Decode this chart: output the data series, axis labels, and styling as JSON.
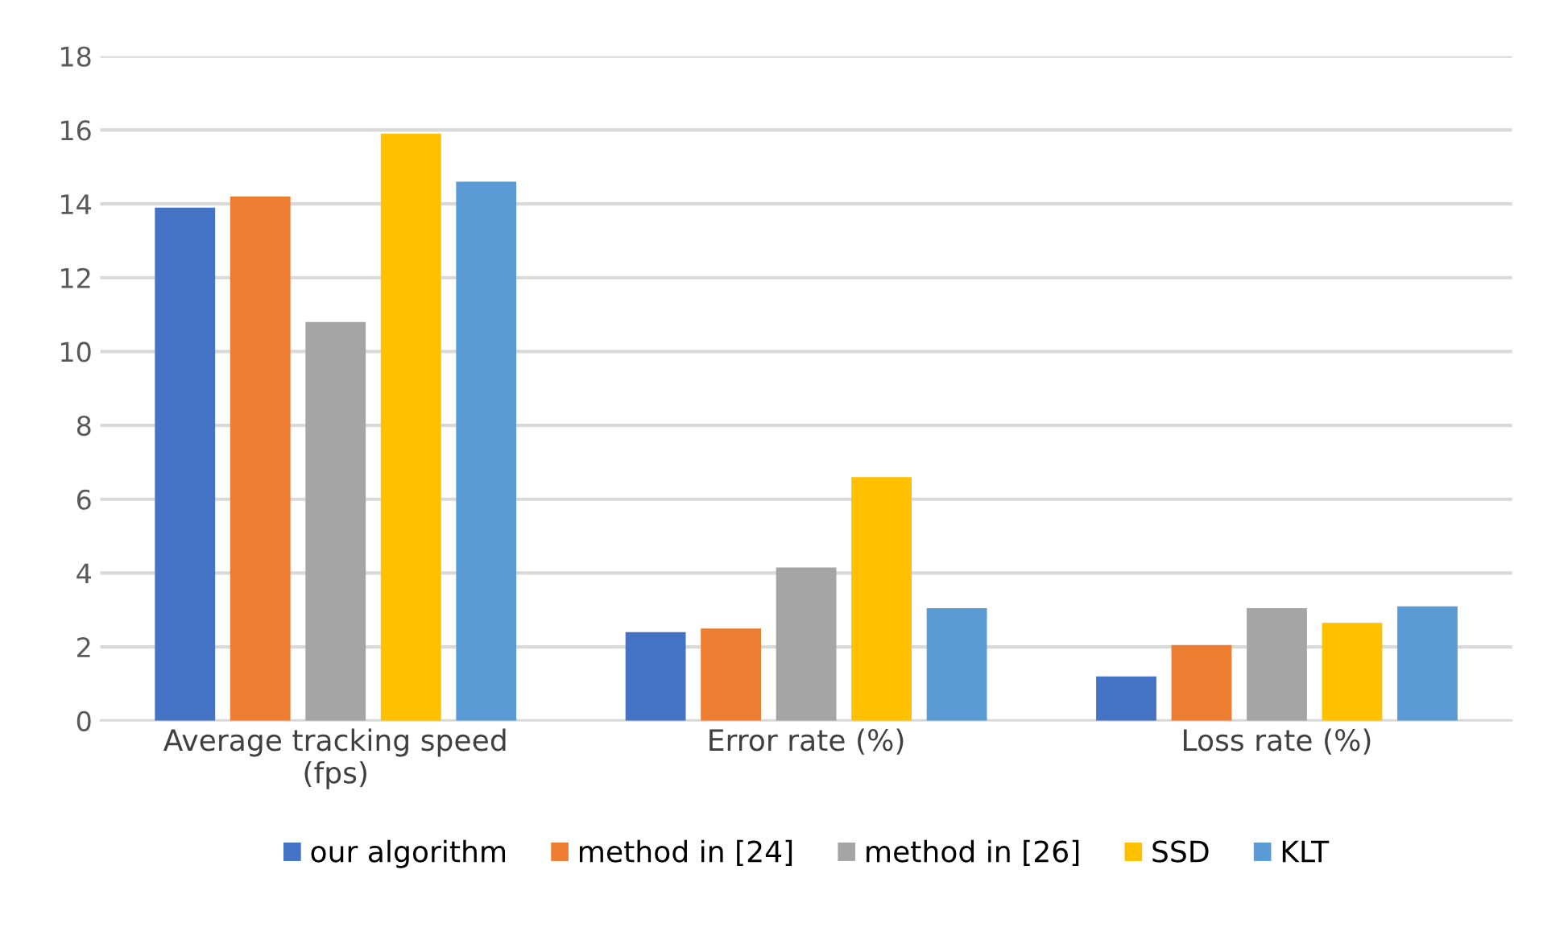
{
  "chart_data": {
    "type": "bar",
    "categories": [
      "Average tracking speed\n(fps)",
      "Error rate (%)",
      "Loss rate (%)"
    ],
    "series": [
      {
        "name": "our algorithm",
        "color": "#4472c4",
        "values": [
          13.9,
          2.4,
          1.2
        ]
      },
      {
        "name": "method in [24]",
        "color": "#ed7d31",
        "values": [
          14.2,
          2.5,
          2.05
        ]
      },
      {
        "name": "method in [26]",
        "color": "#a5a5a5",
        "values": [
          10.8,
          4.15,
          3.05
        ]
      },
      {
        "name": "SSD",
        "color": "#ffc000",
        "values": [
          15.9,
          6.6,
          2.65
        ]
      },
      {
        "name": "KLT",
        "color": "#5b9bd5",
        "values": [
          14.6,
          3.05,
          3.1
        ]
      }
    ],
    "ylim": [
      0,
      18
    ],
    "yticks": [
      0,
      2,
      4,
      6,
      8,
      10,
      12,
      14,
      16,
      18
    ],
    "grid": "y",
    "legend": "bottom"
  }
}
